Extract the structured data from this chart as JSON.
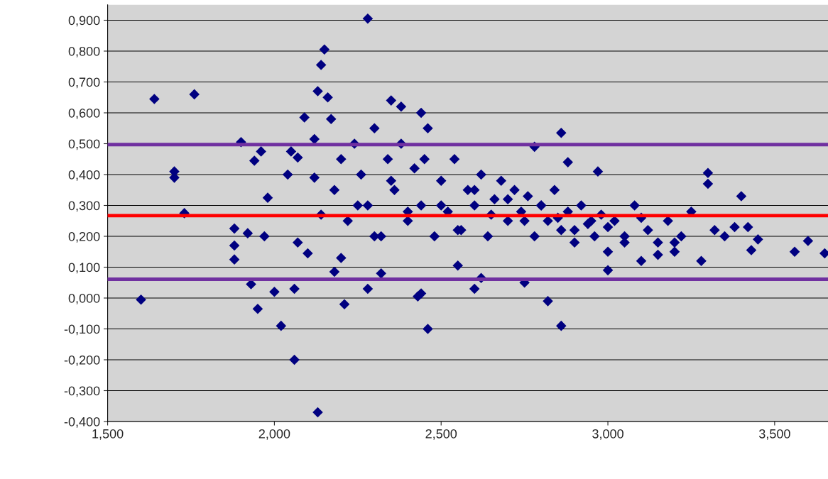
{
  "chart_data": {
    "type": "scatter",
    "marker": "diamond",
    "grid": "y",
    "legend": false,
    "xlim": [
      1.5,
      3.66
    ],
    "ylim": [
      -0.4,
      0.95
    ],
    "xticks": [
      {
        "value": 1.5,
        "label": "1,500"
      },
      {
        "value": 2.0,
        "label": "2,000"
      },
      {
        "value": 2.5,
        "label": "2,500"
      },
      {
        "value": 3.0,
        "label": "3,000"
      },
      {
        "value": 3.5,
        "label": "3,500"
      }
    ],
    "yticks": [
      {
        "value": -0.4,
        "label": "-0,400"
      },
      {
        "value": -0.3,
        "label": "-0,300"
      },
      {
        "value": -0.2,
        "label": "-0,200"
      },
      {
        "value": -0.1,
        "label": "-0,100"
      },
      {
        "value": 0.0,
        "label": "0,000"
      },
      {
        "value": 0.1,
        "label": "0,100"
      },
      {
        "value": 0.2,
        "label": "0,200"
      },
      {
        "value": 0.3,
        "label": "0,300"
      },
      {
        "value": 0.4,
        "label": "0,400"
      },
      {
        "value": 0.5,
        "label": "0,500"
      },
      {
        "value": 0.6,
        "label": "0,600"
      },
      {
        "value": 0.7,
        "label": "0,700"
      },
      {
        "value": 0.8,
        "label": "0,800"
      },
      {
        "value": 0.9,
        "label": "0,900"
      }
    ],
    "ref_lines": [
      {
        "axis": "y",
        "value": 0.497,
        "color": "#7030a0"
      },
      {
        "axis": "y",
        "value": 0.267,
        "color": "#ff0000"
      },
      {
        "axis": "y",
        "value": 0.061,
        "color": "#7030a0"
      }
    ],
    "series": [
      {
        "color": "#000080",
        "x": [
          1.6,
          1.64,
          1.7,
          1.7,
          1.73,
          1.76,
          1.88,
          1.88,
          1.88,
          1.9,
          1.92,
          1.93,
          1.94,
          1.95,
          1.96,
          1.97,
          1.98,
          2.0,
          2.02,
          2.04,
          2.05,
          2.06,
          2.06,
          2.07,
          2.07,
          2.09,
          2.1,
          2.12,
          2.12,
          2.13,
          2.13,
          2.14,
          2.15,
          2.14,
          2.16,
          2.17,
          2.18,
          2.2,
          2.21,
          2.28,
          2.28,
          2.32,
          2.35,
          2.38,
          2.43,
          2.44,
          2.46,
          2.44,
          2.55,
          2.6,
          2.62,
          2.75,
          2.78,
          2.82,
          2.86,
          2.86,
          2.88,
          2.97,
          3.0,
          3.3,
          3.3,
          3.4,
          3.56,
          3.6,
          3.65,
          3.45,
          3.43,
          3.42,
          3.38,
          2.18,
          2.2,
          2.22,
          2.24,
          2.26,
          2.28,
          2.3,
          2.32,
          2.34,
          2.36,
          2.38,
          2.4,
          2.42,
          2.44,
          2.46,
          2.48,
          2.5,
          2.52,
          2.54,
          2.56,
          2.58,
          2.6,
          2.62,
          2.64,
          2.66,
          2.68,
          2.7,
          2.72,
          2.74,
          2.76,
          2.78,
          2.8,
          2.82,
          2.84,
          2.86,
          2.88,
          2.9,
          2.92,
          2.94,
          2.96,
          2.98,
          3.0,
          3.02,
          3.05,
          3.08,
          3.1,
          3.12,
          3.15,
          3.18,
          3.2,
          3.22,
          3.25,
          3.28,
          3.32,
          3.35,
          2.25,
          2.3,
          2.35,
          2.4,
          2.45,
          2.5,
          2.55,
          2.6,
          2.65,
          2.7,
          2.75,
          2.8,
          2.85,
          2.9,
          2.95,
          3.0,
          3.05,
          3.1,
          3.15,
          3.2
        ],
        "values": [
          -0.005,
          0.645,
          0.41,
          0.39,
          0.275,
          0.66,
          0.225,
          0.17,
          0.125,
          0.505,
          0.21,
          0.045,
          0.445,
          -0.035,
          0.475,
          0.2,
          0.325,
          0.02,
          -0.09,
          0.4,
          0.475,
          0.03,
          -0.2,
          0.18,
          0.455,
          0.585,
          0.145,
          0.515,
          0.39,
          -0.37,
          0.67,
          0.755,
          0.805,
          0.27,
          0.65,
          0.58,
          0.085,
          0.13,
          -0.02,
          0.905,
          0.03,
          0.08,
          0.64,
          0.62,
          0.005,
          0.015,
          -0.1,
          0.6,
          0.105,
          0.03,
          0.065,
          0.05,
          0.49,
          -0.01,
          0.535,
          -0.09,
          0.44,
          0.41,
          0.09,
          0.405,
          0.37,
          0.33,
          0.15,
          0.185,
          0.145,
          0.19,
          0.155,
          0.23,
          0.23,
          0.35,
          0.45,
          0.25,
          0.5,
          0.4,
          0.3,
          0.55,
          0.2,
          0.45,
          0.35,
          0.5,
          0.25,
          0.42,
          0.3,
          0.55,
          0.2,
          0.38,
          0.28,
          0.45,
          0.22,
          0.35,
          0.3,
          0.4,
          0.2,
          0.32,
          0.38,
          0.25,
          0.35,
          0.28,
          0.33,
          0.2,
          0.3,
          0.25,
          0.35,
          0.22,
          0.28,
          0.18,
          0.3,
          0.24,
          0.2,
          0.27,
          0.15,
          0.25,
          0.2,
          0.3,
          0.12,
          0.22,
          0.18,
          0.25,
          0.15,
          0.2,
          0.28,
          0.12,
          0.22,
          0.2,
          0.3,
          0.2,
          0.38,
          0.28,
          0.45,
          0.3,
          0.22,
          0.35,
          0.27,
          0.32,
          0.25,
          0.3,
          0.26,
          0.22,
          0.25,
          0.23,
          0.18,
          0.26,
          0.14,
          0.18
        ]
      }
    ]
  }
}
